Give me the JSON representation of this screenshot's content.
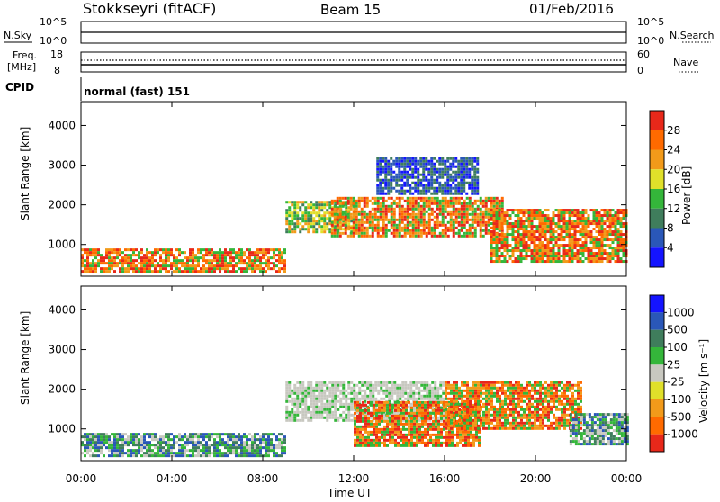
{
  "header": {
    "station": "Stokkseyri (fitACF)",
    "beam": "Beam 15",
    "date": "01/Feb/2016"
  },
  "strip_nsky": {
    "left_label": "N.Sky",
    "right_label": "N.Search",
    "tick_top": "10^5",
    "tick_bottom": "10^0"
  },
  "strip_freq": {
    "left_label_1": "Freq.",
    "left_label_2": "[MHz]",
    "right_label": "Nave",
    "left_tick_top": "18",
    "left_tick_bottom": "8",
    "right_tick_top": "60",
    "right_tick_bottom": "0"
  },
  "cpid": {
    "label": "CPID",
    "value": "normal (fast) 151"
  },
  "colors": {
    "power_scale": [
      "#1414ff",
      "#2a57b8",
      "#3f7d5c",
      "#34b63a",
      "#e0e02a",
      "#f29a1a",
      "#ff6a00",
      "#e8281a"
    ],
    "velocity_scale": [
      "#e8281a",
      "#ff6a00",
      "#f29a1a",
      "#e0e02a",
      "#c8c8c0",
      "#34b63a",
      "#3f7d5c",
      "#2a57b8",
      "#1414ff"
    ],
    "ground_scatter": "#c8c8c0"
  },
  "chart_data": [
    {
      "type": "heatmap",
      "title": "Power",
      "xlabel": "",
      "ylabel": "Slant Range [km]",
      "x_ticks": [
        "00:00",
        "04:00",
        "08:00",
        "12:00",
        "16:00",
        "20:00",
        "00:00"
      ],
      "y_ticks": [
        "1000",
        "2000",
        "3000",
        "4000"
      ],
      "ylim": [
        200,
        4600
      ],
      "colorbar": {
        "label": "Power [dB]",
        "ticks": [
          "4",
          "8",
          "12",
          "16",
          "20",
          "24",
          "28"
        ]
      },
      "regions": [
        {
          "t0": 0.0,
          "t1": 9.0,
          "r0": 300,
          "r1": 900,
          "level": "high"
        },
        {
          "t0": 9.0,
          "t1": 12.0,
          "r0": 1300,
          "r1": 2100,
          "level": "mid"
        },
        {
          "t0": 11.0,
          "t1": 18.5,
          "r0": 1200,
          "r1": 2200,
          "level": "high"
        },
        {
          "t0": 13.0,
          "t1": 17.5,
          "r0": 2300,
          "r1": 3200,
          "level": "low"
        },
        {
          "t0": 18.0,
          "t1": 24.0,
          "r0": 600,
          "r1": 1900,
          "level": "high"
        }
      ]
    },
    {
      "type": "heatmap",
      "title": "Velocity",
      "xlabel": "Time UT",
      "ylabel": "Slant Range [km]",
      "x_ticks": [
        "00:00",
        "04:00",
        "08:00",
        "12:00",
        "16:00",
        "20:00",
        "00:00"
      ],
      "y_ticks": [
        "1000",
        "2000",
        "3000",
        "4000"
      ],
      "ylim": [
        200,
        4600
      ],
      "colorbar": {
        "label": "Velocity [m s⁻¹]",
        "ticks": [
          "1000",
          "500",
          "100",
          "25",
          "-25",
          "-100",
          "-500",
          "-1000"
        ]
      },
      "regions": [
        {
          "t0": 0.0,
          "t1": 9.0,
          "r0": 300,
          "r1": 900,
          "level": "positive"
        },
        {
          "t0": 9.0,
          "t1": 16.0,
          "r0": 1200,
          "r1": 2200,
          "level": "ground"
        },
        {
          "t0": 12.0,
          "t1": 17.5,
          "r0": 600,
          "r1": 1700,
          "level": "negative"
        },
        {
          "t0": 16.0,
          "t1": 22.0,
          "r0": 1000,
          "r1": 2200,
          "level": "negative"
        },
        {
          "t0": 21.5,
          "t1": 24.0,
          "r0": 600,
          "r1": 1400,
          "level": "positive"
        }
      ]
    }
  ]
}
